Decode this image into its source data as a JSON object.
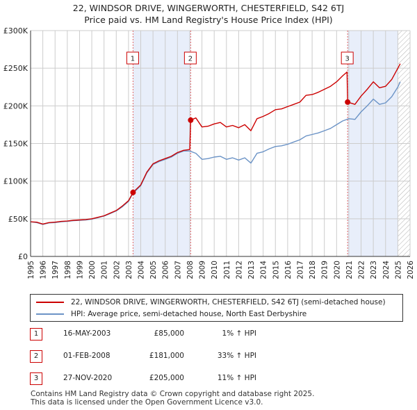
{
  "title": {
    "line1": "22, WINDSOR DRIVE, WINGERWORTH, CHESTERFIELD, S42 6TJ",
    "line2": "Price paid vs. HM Land Registry's House Price Index (HPI)"
  },
  "colors": {
    "property": "#cc0000",
    "hpi": "#6b93c6",
    "shade": "#e8eefa",
    "grid": "#cccccc",
    "marker_line": "#e06666"
  },
  "chart_data": {
    "type": "line",
    "x_range": [
      1995,
      2026
    ],
    "ylim": [
      0,
      300000
    ],
    "y_ticks": [
      0,
      50000,
      100000,
      150000,
      200000,
      250000,
      300000
    ],
    "y_tick_labels": [
      "£0",
      "£50K",
      "£100K",
      "£150K",
      "£200K",
      "£250K",
      "£300K"
    ],
    "x_ticks": [
      1995,
      1996,
      1997,
      1998,
      1999,
      2000,
      2001,
      2002,
      2003,
      2004,
      2005,
      2006,
      2007,
      2008,
      2009,
      2010,
      2011,
      2012,
      2013,
      2014,
      2015,
      2016,
      2017,
      2018,
      2019,
      2020,
      2021,
      2022,
      2023,
      2024,
      2025,
      2026
    ],
    "x_tick_labels": [
      "1995",
      "1996",
      "1997",
      "1998",
      "1999",
      "2000",
      "2001",
      "2002",
      "2003",
      "2004",
      "2005",
      "2006",
      "2007",
      "2008",
      "2009",
      "2010",
      "2011",
      "2012",
      "2013",
      "2014",
      "2015",
      "2016",
      "2017",
      "2018",
      "2019",
      "2020",
      "2021",
      "2022",
      "2023",
      "2024",
      "2025",
      "2026"
    ],
    "shaded_periods": [
      [
        2003.37,
        2008.08
      ],
      [
        2020.9,
        2025.0
      ]
    ],
    "future_hatch_from": 2025.0,
    "series": [
      {
        "name": "22, WINDSOR DRIVE, WINGERWORTH, CHESTERFIELD, S42 6TJ (semi-detached house)",
        "color": "#cc0000",
        "points": [
          [
            1995.0,
            46000
          ],
          [
            1995.5,
            45500
          ],
          [
            1996.0,
            43000
          ],
          [
            1996.5,
            45000
          ],
          [
            1997.0,
            45500
          ],
          [
            1997.5,
            46500
          ],
          [
            1998.0,
            47000
          ],
          [
            1998.5,
            48000
          ],
          [
            1999.0,
            48500
          ],
          [
            1999.5,
            49000
          ],
          [
            2000.0,
            50000
          ],
          [
            2000.5,
            52000
          ],
          [
            2001.0,
            54000
          ],
          [
            2001.5,
            57500
          ],
          [
            2002.0,
            61000
          ],
          [
            2002.5,
            67000
          ],
          [
            2003.0,
            74000
          ],
          [
            2003.37,
            85000
          ],
          [
            2004.0,
            95000
          ],
          [
            2004.5,
            112000
          ],
          [
            2005.0,
            123000
          ],
          [
            2005.5,
            127000
          ],
          [
            2006.0,
            130000
          ],
          [
            2006.5,
            133000
          ],
          [
            2007.0,
            138000
          ],
          [
            2007.5,
            141000
          ],
          [
            2008.0,
            142000
          ],
          [
            2008.08,
            181000
          ],
          [
            2008.5,
            184000
          ],
          [
            2009.0,
            172000
          ],
          [
            2009.5,
            173000
          ],
          [
            2010.0,
            176000
          ],
          [
            2010.5,
            178000
          ],
          [
            2011.0,
            172000
          ],
          [
            2011.5,
            174000
          ],
          [
            2012.0,
            171000
          ],
          [
            2012.5,
            175000
          ],
          [
            2013.0,
            167000
          ],
          [
            2013.5,
            183000
          ],
          [
            2014.0,
            186000
          ],
          [
            2014.5,
            190000
          ],
          [
            2015.0,
            195000
          ],
          [
            2015.5,
            196000
          ],
          [
            2016.0,
            199000
          ],
          [
            2016.5,
            202000
          ],
          [
            2017.0,
            205000
          ],
          [
            2017.5,
            214000
          ],
          [
            2018.0,
            215000
          ],
          [
            2018.5,
            218000
          ],
          [
            2019.0,
            222000
          ],
          [
            2019.5,
            226000
          ],
          [
            2020.0,
            232000
          ],
          [
            2020.5,
            240000
          ],
          [
            2020.85,
            245000
          ],
          [
            2020.9,
            205000
          ],
          [
            2021.5,
            202000
          ],
          [
            2022.0,
            213000
          ],
          [
            2022.5,
            222000
          ],
          [
            2023.0,
            232000
          ],
          [
            2023.5,
            224000
          ],
          [
            2024.0,
            226000
          ],
          [
            2024.5,
            235000
          ],
          [
            2025.0,
            250000
          ],
          [
            2025.2,
            256000
          ]
        ]
      },
      {
        "name": "HPI: Average price, semi-detached house, North East Derbyshire",
        "color": "#6b93c6",
        "points": [
          [
            1995.0,
            46000
          ],
          [
            1995.5,
            45000
          ],
          [
            1996.0,
            42500
          ],
          [
            1996.5,
            44500
          ],
          [
            1997.0,
            45000
          ],
          [
            1997.5,
            46000
          ],
          [
            1998.0,
            46500
          ],
          [
            1998.5,
            47500
          ],
          [
            1999.0,
            48000
          ],
          [
            1999.5,
            48500
          ],
          [
            2000.0,
            49500
          ],
          [
            2000.5,
            51500
          ],
          [
            2001.0,
            53500
          ],
          [
            2001.5,
            57000
          ],
          [
            2002.0,
            60500
          ],
          [
            2002.5,
            66000
          ],
          [
            2003.0,
            73000
          ],
          [
            2003.37,
            84000
          ],
          [
            2004.0,
            94000
          ],
          [
            2004.5,
            111000
          ],
          [
            2005.0,
            122000
          ],
          [
            2005.5,
            126000
          ],
          [
            2006.0,
            129000
          ],
          [
            2006.5,
            132000
          ],
          [
            2007.0,
            137000
          ],
          [
            2007.5,
            140000
          ],
          [
            2008.0,
            140000
          ],
          [
            2008.5,
            137000
          ],
          [
            2009.0,
            129000
          ],
          [
            2009.5,
            130000
          ],
          [
            2010.0,
            132000
          ],
          [
            2010.5,
            133000
          ],
          [
            2011.0,
            129000
          ],
          [
            2011.5,
            131000
          ],
          [
            2012.0,
            128000
          ],
          [
            2012.5,
            131000
          ],
          [
            2013.0,
            124000
          ],
          [
            2013.5,
            137000
          ],
          [
            2014.0,
            139000
          ],
          [
            2014.5,
            143000
          ],
          [
            2015.0,
            146000
          ],
          [
            2015.5,
            147000
          ],
          [
            2016.0,
            149000
          ],
          [
            2016.5,
            152000
          ],
          [
            2017.0,
            155000
          ],
          [
            2017.5,
            160000
          ],
          [
            2018.0,
            162000
          ],
          [
            2018.5,
            164000
          ],
          [
            2019.0,
            167000
          ],
          [
            2019.5,
            170000
          ],
          [
            2020.0,
            175000
          ],
          [
            2020.5,
            180000
          ],
          [
            2021.0,
            183000
          ],
          [
            2021.5,
            182000
          ],
          [
            2022.0,
            192000
          ],
          [
            2022.5,
            200000
          ],
          [
            2023.0,
            209000
          ],
          [
            2023.5,
            202000
          ],
          [
            2024.0,
            204000
          ],
          [
            2024.5,
            212000
          ],
          [
            2025.0,
            225000
          ],
          [
            2025.2,
            232000
          ]
        ]
      }
    ],
    "transactions": [
      {
        "id": "1",
        "x": 2003.37,
        "y": 85000
      },
      {
        "id": "2",
        "x": 2008.08,
        "y": 181000
      },
      {
        "id": "3",
        "x": 2020.9,
        "y": 205000
      }
    ]
  },
  "legend": {
    "property_label": "22, WINDSOR DRIVE, WINGERWORTH, CHESTERFIELD, S42 6TJ (semi-detached house)",
    "hpi_label": "HPI: Average price, semi-detached house, North East Derbyshire"
  },
  "transactions_table": [
    {
      "num": "1",
      "date": "16-MAY-2003",
      "price": "£85,000",
      "hpi": "1% ↑ HPI"
    },
    {
      "num": "2",
      "date": "01-FEB-2008",
      "price": "£181,000",
      "hpi": "33% ↑ HPI"
    },
    {
      "num": "3",
      "date": "27-NOV-2020",
      "price": "£205,000",
      "hpi": "11% ↑ HPI"
    }
  ],
  "footer": {
    "line1": "Contains HM Land Registry data © Crown copyright and database right 2025.",
    "line2": "This data is licensed under the Open Government Licence v3.0."
  }
}
